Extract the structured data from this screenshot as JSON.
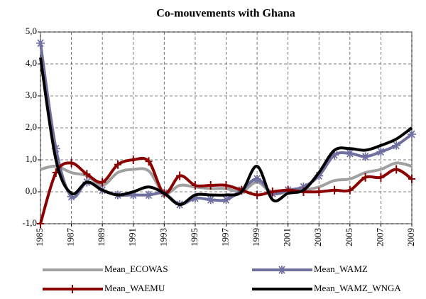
{
  "chart_data": {
    "type": "line",
    "title": "Co-mouvements with Ghana",
    "x": [
      1985,
      1986,
      1987,
      1988,
      1989,
      1990,
      1991,
      1992,
      1993,
      1994,
      1995,
      1996,
      1997,
      1998,
      1999,
      2000,
      2001,
      2002,
      2003,
      2004,
      2005,
      2006,
      2007,
      2008,
      2009
    ],
    "xlim": [
      1985,
      2009
    ],
    "xticks": [
      1985,
      1987,
      1989,
      1991,
      1993,
      1995,
      1997,
      1999,
      2001,
      2003,
      2005,
      2007,
      2009
    ],
    "ylim": [
      -1,
      5
    ],
    "yticks": [
      {
        "value": -1,
        "label": "-1,0"
      },
      {
        "value": 0,
        "label": "0,0"
      },
      {
        "value": 1,
        "label": "1,0"
      },
      {
        "value": 2,
        "label": "2,0"
      },
      {
        "value": 3,
        "label": "3,0"
      },
      {
        "value": 4,
        "label": "4,0"
      },
      {
        "value": 5,
        "label": "5,0"
      }
    ],
    "grid": true,
    "legend": "bottom",
    "series": [
      {
        "name": "Mean_ECOWAS",
        "color": "#a0a0a0",
        "marker": "none",
        "values": [
          0.7,
          0.8,
          0.6,
          0.5,
          0.2,
          0.6,
          0.7,
          0.65,
          -0.05,
          0.2,
          0.15,
          0.1,
          0.1,
          0.0,
          0.3,
          -0.05,
          0.0,
          0.05,
          0.15,
          0.35,
          0.4,
          0.6,
          0.7,
          0.9,
          0.8
        ]
      },
      {
        "name": "Mean_WAMZ",
        "color": "#7070a0",
        "marker": "star",
        "values": [
          4.65,
          1.35,
          -0.15,
          0.3,
          0.05,
          -0.1,
          -0.1,
          -0.1,
          -0.05,
          -0.4,
          -0.2,
          -0.25,
          -0.25,
          0.05,
          0.4,
          -0.05,
          0.05,
          0.15,
          0.5,
          1.15,
          1.2,
          1.1,
          1.25,
          1.45,
          1.8
        ]
      },
      {
        "name": "Mean_WAEMU",
        "color": "#8b0000",
        "marker": "plus",
        "values": [
          -1.0,
          0.6,
          0.9,
          0.55,
          0.3,
          0.85,
          1.0,
          0.95,
          -0.05,
          0.5,
          0.2,
          0.2,
          0.2,
          0.05,
          -0.1,
          0.0,
          0.05,
          0.0,
          0.0,
          0.05,
          0.05,
          0.45,
          0.45,
          0.7,
          0.4
        ]
      },
      {
        "name": "Mean_WAMZ_WNGA",
        "color": "#000000",
        "marker": "none",
        "values": [
          4.2,
          1.0,
          -0.05,
          0.3,
          0.05,
          -0.1,
          0.0,
          0.15,
          -0.05,
          -0.4,
          -0.1,
          -0.1,
          -0.1,
          0.0,
          0.8,
          -0.25,
          -0.05,
          0.05,
          0.6,
          1.3,
          1.35,
          1.3,
          1.45,
          1.65,
          2.0
        ]
      }
    ]
  }
}
